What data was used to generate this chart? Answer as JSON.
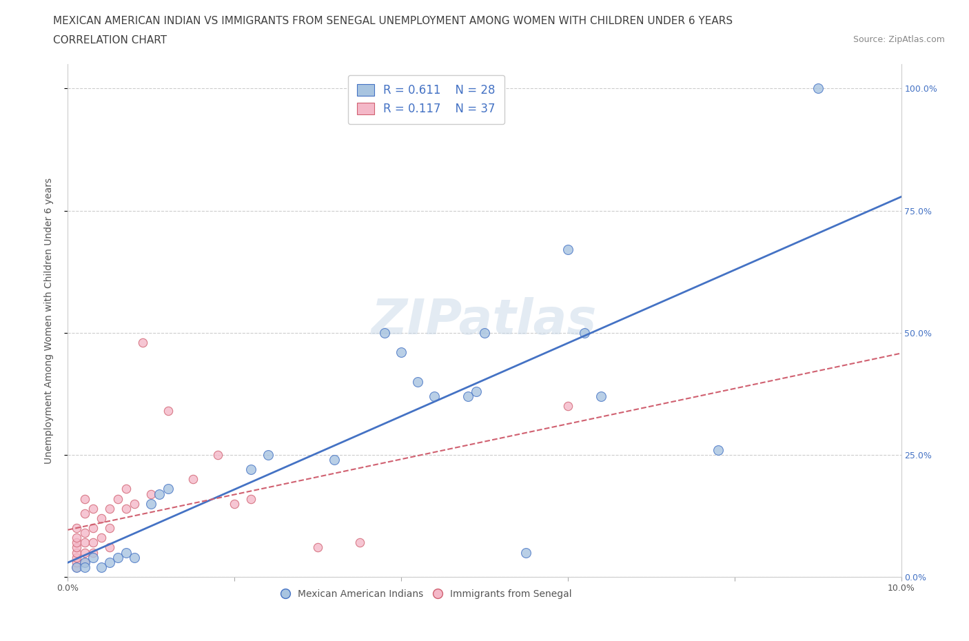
{
  "title_line1": "MEXICAN AMERICAN INDIAN VS IMMIGRANTS FROM SENEGAL UNEMPLOYMENT AMONG WOMEN WITH CHILDREN UNDER 6 YEARS",
  "title_line2": "CORRELATION CHART",
  "source": "Source: ZipAtlas.com",
  "ylabel": "Unemployment Among Women with Children Under 6 years",
  "watermark": "ZIPatlas",
  "xlim": [
    0.0,
    0.1
  ],
  "ylim": [
    0.0,
    1.05
  ],
  "xticks": [
    0.0,
    0.02,
    0.04,
    0.06,
    0.08,
    0.1
  ],
  "xtick_labels": [
    "0.0%",
    "",
    "",
    "",
    "",
    "10.0%"
  ],
  "ytick_positions": [
    0.0,
    0.25,
    0.5,
    0.75,
    1.0
  ],
  "ytick_labels": [
    "0.0%",
    "25.0%",
    "50.0%",
    "75.0%",
    "100.0%"
  ],
  "blue_scatter_x": [
    0.001,
    0.002,
    0.002,
    0.003,
    0.004,
    0.005,
    0.006,
    0.007,
    0.008,
    0.01,
    0.011,
    0.012,
    0.022,
    0.024,
    0.032,
    0.038,
    0.04,
    0.042,
    0.044,
    0.048,
    0.049,
    0.05,
    0.055,
    0.06,
    0.062,
    0.064,
    0.078,
    0.09
  ],
  "blue_scatter_y": [
    0.02,
    0.03,
    0.02,
    0.04,
    0.02,
    0.03,
    0.04,
    0.05,
    0.04,
    0.15,
    0.17,
    0.18,
    0.22,
    0.25,
    0.24,
    0.5,
    0.46,
    0.4,
    0.37,
    0.37,
    0.38,
    0.5,
    0.05,
    0.67,
    0.5,
    0.37,
    0.26,
    1.0
  ],
  "pink_scatter_x": [
    0.001,
    0.001,
    0.001,
    0.001,
    0.001,
    0.001,
    0.001,
    0.001,
    0.002,
    0.002,
    0.002,
    0.002,
    0.002,
    0.002,
    0.003,
    0.003,
    0.003,
    0.003,
    0.004,
    0.004,
    0.005,
    0.005,
    0.005,
    0.006,
    0.007,
    0.007,
    0.008,
    0.009,
    0.01,
    0.012,
    0.015,
    0.018,
    0.02,
    0.022,
    0.03,
    0.035,
    0.06
  ],
  "pink_scatter_y": [
    0.02,
    0.03,
    0.04,
    0.05,
    0.06,
    0.07,
    0.08,
    0.1,
    0.03,
    0.05,
    0.07,
    0.09,
    0.13,
    0.16,
    0.05,
    0.07,
    0.1,
    0.14,
    0.08,
    0.12,
    0.06,
    0.1,
    0.14,
    0.16,
    0.14,
    0.18,
    0.15,
    0.48,
    0.17,
    0.34,
    0.2,
    0.25,
    0.15,
    0.16,
    0.06,
    0.07,
    0.35
  ],
  "blue_R": 0.611,
  "blue_N": 28,
  "pink_R": 0.117,
  "pink_N": 37,
  "blue_color": "#a8c4e0",
  "blue_line_color": "#4472c4",
  "pink_color": "#f4b8c8",
  "pink_line_color": "#d06070",
  "scatter_alpha": 0.8,
  "scatter_size_blue": 100,
  "scatter_size_pink": 80,
  "legend_blue_face": "#a8c4e0",
  "legend_pink_face": "#f4b8c8",
  "legend_text_color": "#4472c4",
  "grid_color": "#cccccc",
  "background_color": "#ffffff",
  "title_color": "#404040",
  "title_fontsize": 11,
  "subtitle_fontsize": 11,
  "axis_label_fontsize": 10,
  "tick_label_fontsize": 9,
  "source_fontsize": 9
}
